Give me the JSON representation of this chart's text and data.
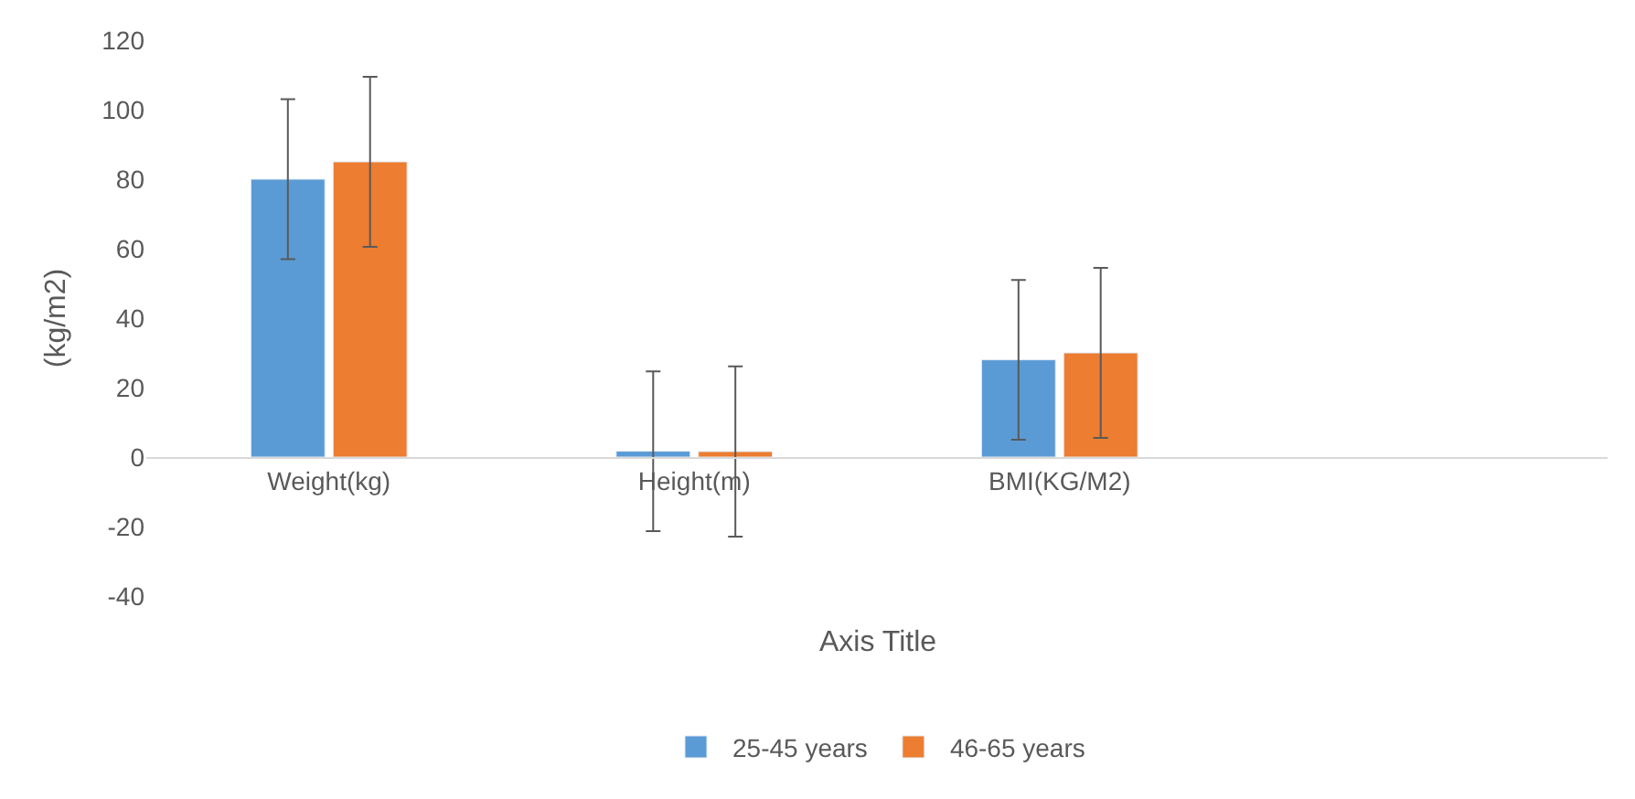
{
  "chart_data": {
    "type": "bar",
    "categories": [
      "Weight(kg)",
      "Height(m)",
      "BMI(KG/M2)",
      null
    ],
    "series": [
      {
        "name": "25-45 years",
        "color": "#5b9bd5",
        "values": [
          80,
          1.7,
          28,
          null
        ],
        "errors": [
          23,
          23,
          23,
          null
        ]
      },
      {
        "name": "46-65 years",
        "color": "#ed7d31",
        "values": [
          85,
          1.6,
          30,
          null
        ],
        "errors": [
          24.5,
          24.5,
          24.5,
          null
        ]
      }
    ],
    "xlabel": "Axis Title",
    "ylabel": "(kg/m2)",
    "ylim": [
      -40,
      120
    ],
    "yticks": [
      -40,
      -20,
      0,
      20,
      40,
      60,
      80,
      100,
      120
    ],
    "grid": false,
    "legend": "bottom"
  }
}
